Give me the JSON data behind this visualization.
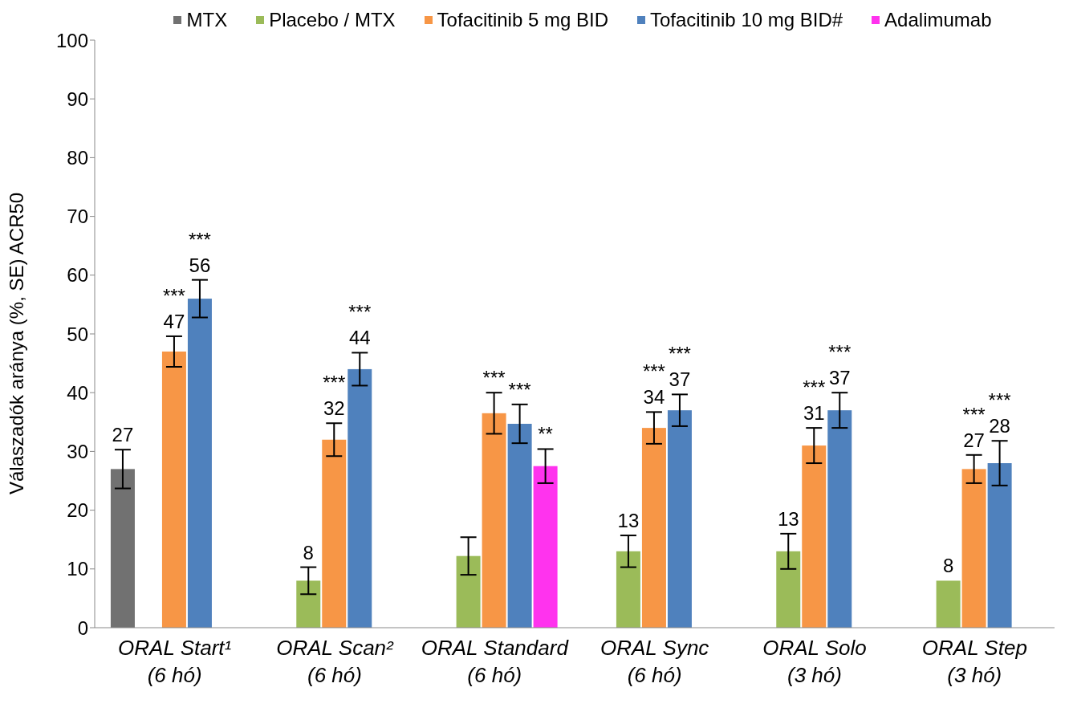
{
  "chart_data": {
    "type": "bar",
    "ylabel": "Válaszadók aránya  (%,  SE) ACR50",
    "categories": [
      "ORAL Start¹\n(6 hó)",
      "ORAL Scan²\n(6 hó)",
      "ORAL Standard\n(6 hó)",
      "ORAL Sync\n(6 hó)",
      "ORAL Solo\n(3 hó)",
      "ORAL Step\n(3 hó)"
    ],
    "series": [
      {
        "name": "MTX",
        "color": "#717171",
        "values": [
          27,
          null,
          null,
          null,
          null,
          null
        ],
        "errors": [
          3.3,
          null,
          null,
          null,
          null,
          null
        ],
        "value_labels": [
          "27",
          null,
          null,
          null,
          null,
          null
        ]
      },
      {
        "name": "Placebo / MTX",
        "color": "#9bbb59",
        "values": [
          null,
          8,
          12.2,
          13,
          13,
          8
        ],
        "errors": [
          null,
          2.3,
          3.2,
          2.7,
          3,
          null
        ],
        "value_labels": [
          null,
          "8",
          null,
          "13",
          "13",
          "8"
        ]
      },
      {
        "name": "Tofacitinib 5 mg BID",
        "color": "#f79646",
        "values": [
          47,
          32,
          36.5,
          34,
          31,
          27
        ],
        "errors": [
          2.6,
          2.8,
          3.5,
          2.7,
          3,
          2.4
        ],
        "value_labels": [
          "***\n47",
          "***\n32",
          "***",
          "***\n34",
          "***\n31",
          "***\n27"
        ]
      },
      {
        "name": "Tofacitinib 10 mg BID#",
        "color": "#4f81bd",
        "values": [
          56,
          44,
          34.7,
          37,
          37,
          28
        ],
        "errors": [
          3.2,
          2.8,
          3.3,
          2.7,
          3,
          3.8
        ],
        "value_labels": [
          "***\n56",
          "***\n44",
          "***",
          "***\n37",
          "***\n37",
          "***\n28"
        ]
      },
      {
        "name": "Adalimumab",
        "color": "#ff33ee",
        "values": [
          null,
          null,
          27.5,
          null,
          null,
          null
        ],
        "errors": [
          null,
          null,
          2.9,
          null,
          null,
          null
        ],
        "value_labels": [
          null,
          null,
          "**",
          null,
          null,
          null
        ]
      }
    ],
    "ylim": [
      0,
      100
    ],
    "yticks": [
      0,
      10,
      20,
      30,
      40,
      50,
      60,
      70,
      80,
      90,
      100
    ],
    "legend": "top"
  }
}
